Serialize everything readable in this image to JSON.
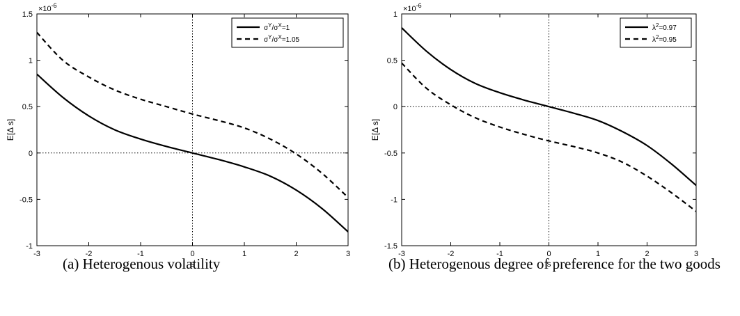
{
  "charts": [
    {
      "type": "line",
      "xlabel": "s",
      "ylabel": "E[Δ s]",
      "exponent_label": "×10",
      "exponent_power": "-6",
      "xlim": [
        -3,
        3
      ],
      "ylim": [
        -1,
        1.5
      ],
      "xticks": [
        "-3",
        "-2",
        "-1",
        "0",
        "1",
        "2",
        "3"
      ],
      "yticks": [
        "-1",
        "-0.5",
        "0",
        "0.5",
        "1",
        "1.5"
      ],
      "ytick_values": [
        -1,
        -0.5,
        0,
        0.5,
        1,
        1.5
      ],
      "legend_position": "top-right",
      "legend": [
        {
          "prefix": "σ",
          "sup1": "Y",
          "mid": "/σ",
          "sup2": "X",
          "suffix": "=1"
        },
        {
          "prefix": "σ",
          "sup1": "Y",
          "mid": "/σ",
          "sup2": "X",
          "suffix": "=1.05"
        }
      ],
      "caption": "(a) Heterogenous volatility"
    },
    {
      "type": "line",
      "xlabel": "s",
      "ylabel": "E[Δ s]",
      "exponent_label": "×10",
      "exponent_power": "-6",
      "xlim": [
        -3,
        3
      ],
      "ylim": [
        -1.5,
        1
      ],
      "xticks": [
        "-3",
        "-2",
        "-1",
        "0",
        "1",
        "2",
        "3"
      ],
      "yticks": [
        "-1.5",
        "-1",
        "-0.5",
        "0",
        "0.5",
        "1"
      ],
      "ytick_values": [
        -1.5,
        -1,
        -0.5,
        0,
        0.5,
        1
      ],
      "legend_position": "top-right",
      "legend": [
        {
          "prefix": "λ",
          "sup1": "2",
          "mid": "",
          "sup2": "",
          "suffix": "=0.97"
        },
        {
          "prefix": "λ",
          "sup1": "2",
          "mid": "",
          "sup2": "",
          "suffix": "=0.95"
        }
      ],
      "caption": "(b) Heterogenous degree of preference for the two goods"
    }
  ],
  "chart_data": [
    {
      "type": "line",
      "x": [
        -3,
        -2.5,
        -2,
        -1.5,
        -1,
        -0.5,
        0,
        0.5,
        1,
        1.5,
        2,
        2.5,
        3
      ],
      "series": [
        {
          "name": "σY/σX=1",
          "style": "solid",
          "values": [
            0.85,
            0.6,
            0.4,
            0.25,
            0.15,
            0.07,
            0.0,
            -0.07,
            -0.15,
            -0.25,
            -0.4,
            -0.6,
            -0.85
          ]
        },
        {
          "name": "σY/σX=1.05",
          "style": "dashed",
          "values": [
            1.3,
            1.0,
            0.82,
            0.68,
            0.58,
            0.5,
            0.42,
            0.35,
            0.27,
            0.15,
            -0.01,
            -0.22,
            -0.48
          ]
        }
      ],
      "xlim": [
        -3,
        3
      ],
      "ylim": [
        -1,
        1.5
      ],
      "xlabel": "s",
      "ylabel": "E[Δ s]",
      "grid": false,
      "legend": "top-right"
    },
    {
      "type": "line",
      "x": [
        -3,
        -2.5,
        -2,
        -1.5,
        -1,
        -0.5,
        0,
        0.5,
        1,
        1.5,
        2,
        2.5,
        3
      ],
      "series": [
        {
          "name": "λ2=0.97",
          "style": "solid",
          "values": [
            0.85,
            0.6,
            0.4,
            0.25,
            0.15,
            0.07,
            0.0,
            -0.07,
            -0.15,
            -0.27,
            -0.42,
            -0.62,
            -0.85
          ]
        },
        {
          "name": "λ2=0.95",
          "style": "dashed",
          "values": [
            0.47,
            0.2,
            0.02,
            -0.12,
            -0.22,
            -0.3,
            -0.37,
            -0.43,
            -0.5,
            -0.6,
            -0.75,
            -0.93,
            -1.13
          ]
        }
      ],
      "xlim": [
        -3,
        3
      ],
      "ylim": [
        -1.5,
        1
      ],
      "xlabel": "s",
      "ylabel": "E[Δ s]",
      "grid": false,
      "legend": "top-right"
    }
  ]
}
